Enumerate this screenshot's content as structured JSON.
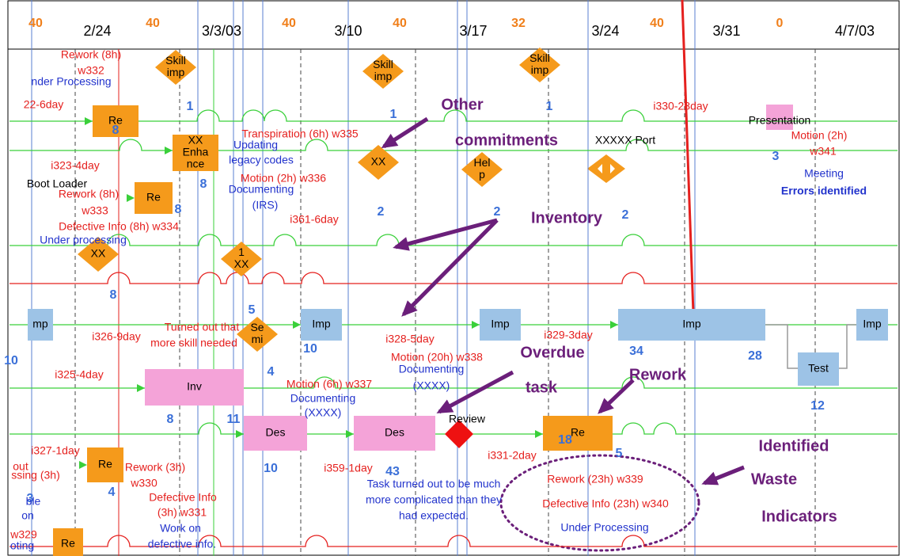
{
  "header": {
    "labels": [
      "40",
      "2/24",
      "40",
      "3/3/03",
      "40",
      "3/10",
      "40",
      "3/17",
      "32",
      "3/24",
      "40",
      "3/31",
      "0",
      "4/7/03"
    ]
  },
  "boxes": [
    {
      "label": [
        "Re"
      ]
    },
    {
      "label": [
        "XX",
        "Enha",
        "nce"
      ]
    },
    {
      "label": [
        "Re"
      ]
    },
    {
      "label": [
        "Re"
      ]
    },
    {
      "label": [
        "Re"
      ]
    },
    {
      "label": [
        "Re"
      ]
    },
    {
      "label": [
        "Skill",
        "imp"
      ]
    },
    {
      "label": [
        "Skill",
        "imp"
      ]
    },
    {
      "label": [
        "Skill",
        "imp"
      ]
    },
    {
      "label": [
        "XX"
      ]
    },
    {
      "label": [
        "Hel",
        "p"
      ]
    },
    {
      "label": [
        "XX"
      ]
    },
    {
      "label": [
        "1",
        "XX"
      ]
    },
    {
      "label": [
        "Se",
        "mi"
      ]
    },
    {
      "label": [
        "mp"
      ]
    },
    {
      "label": [
        "Imp"
      ]
    },
    {
      "label": [
        "Imp"
      ]
    },
    {
      "label": [
        "Imp"
      ]
    },
    {
      "label": [
        "Imp"
      ]
    },
    {
      "label": [
        "Test"
      ]
    },
    {
      "label": [
        "Inv"
      ]
    },
    {
      "label": [
        "Des"
      ]
    },
    {
      "label": [
        "Des"
      ]
    }
  ],
  "numbers": [
    "1",
    "1",
    "1",
    "8",
    "8",
    "8",
    "2",
    "2",
    "2",
    "3",
    "8",
    "5",
    "10",
    "4",
    "10",
    "8",
    "11",
    "34",
    "28",
    "12",
    "10",
    "43",
    "18",
    "5",
    "4",
    "3"
  ],
  "notes": [
    "Rework (8h)",
    "w332",
    "22-6day",
    "i323-4day",
    "Rework (8h)",
    "w333",
    "Defective Info (8h) w334",
    "Transpiration (6h) w335",
    "Motion (2h) w336",
    "i361-6day",
    "i330-28day",
    "Motion (2h)",
    "w341",
    "Turned out that",
    "more skill needed",
    "i326-9day",
    "i328-5day",
    "Motion (20h) w338",
    "i329-3day",
    "i325-4day",
    "Motion (6h) w337",
    "i327-1day",
    "out",
    "ssing (3h)",
    "Rework (3h)",
    "w330",
    "Defective Info",
    "(3h) w331",
    "i359-1day",
    "i331-2day",
    "Rework (23h) w339",
    "Defective Info (23h) w340",
    "w329",
    "nder Processing",
    "Updating",
    "legacy codes",
    "Documenting",
    "(IRS)",
    "Under processing",
    "Meeting",
    "Errors identified",
    "Documenting",
    "(XXXX)",
    "Documenting",
    "(XXXX)",
    "Task turned out to be much",
    "more complicated than they",
    "had expected.",
    "Work on",
    "defective info.",
    "Under Processing",
    "ble",
    "on",
    "oting",
    "Boot Loader",
    "XXXXX Port",
    "Review",
    "Presentation"
  ],
  "callouts": [
    "Other",
    "commitments",
    "Inventory",
    "Overdue",
    "task",
    "Rework",
    "Identified",
    "Waste",
    "Indicators"
  ]
}
